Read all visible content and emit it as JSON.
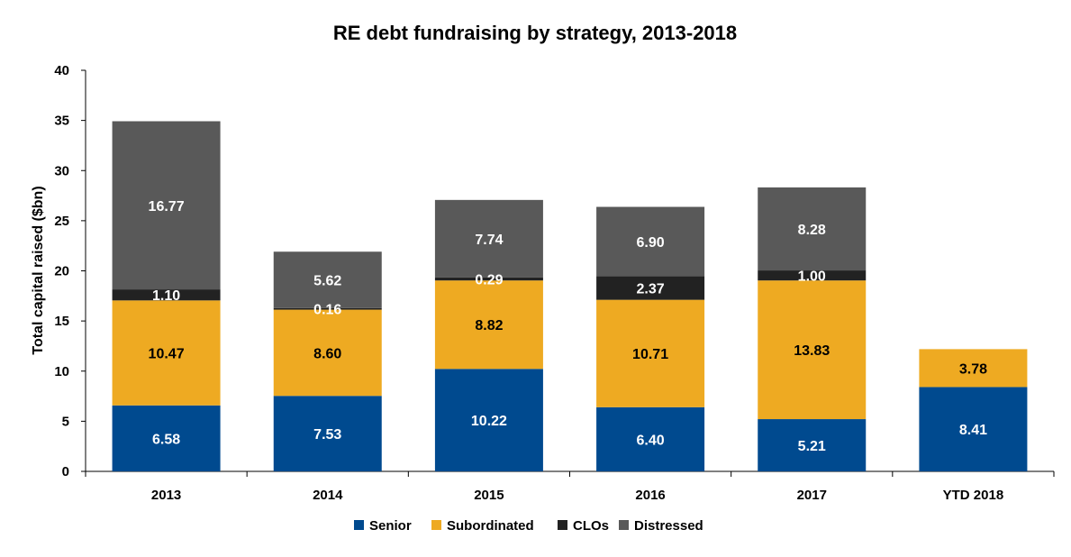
{
  "chart_data": {
    "type": "bar",
    "stacked": true,
    "title": "RE debt fundraising by strategy, 2013-2018",
    "xlabel": "",
    "ylabel": "Total capital raised ($bn)",
    "ylim": [
      0,
      40
    ],
    "yticks": [
      0,
      5,
      10,
      15,
      20,
      25,
      30,
      35,
      40
    ],
    "categories": [
      "2013",
      "2014",
      "2015",
      "2016",
      "2017",
      "YTD 2018"
    ],
    "series": [
      {
        "name": "Senior",
        "color": "#004a8f",
        "label_color": "#ffffff",
        "values": [
          6.58,
          7.53,
          10.22,
          6.4,
          5.21,
          8.41
        ],
        "labels": [
          "6.58",
          "7.53",
          "10.22",
          "6.40",
          "5.21",
          "8.41"
        ]
      },
      {
        "name": "Subordinated",
        "color": "#eeaa22",
        "label_color": "#000000",
        "values": [
          10.47,
          8.6,
          8.82,
          10.71,
          13.83,
          3.78
        ],
        "labels": [
          "10.47",
          "8.60",
          "8.82",
          "10.71",
          "13.83",
          "3.78"
        ]
      },
      {
        "name": "CLOs",
        "color": "#222222",
        "label_color": "#ffffff",
        "values": [
          1.1,
          0.16,
          0.29,
          2.37,
          1.0,
          0
        ],
        "labels": [
          "1.10",
          "0.16",
          "0.29",
          "2.37",
          "1.00",
          ""
        ]
      },
      {
        "name": "Distressed",
        "color": "#595959",
        "label_color": "#ffffff",
        "values": [
          16.77,
          5.62,
          7.74,
          6.9,
          8.28,
          0
        ],
        "labels": [
          "16.77",
          "5.62",
          "7.74",
          "6.90",
          "8.28",
          ""
        ]
      }
    ],
    "legend_position": "bottom",
    "grid": false
  }
}
